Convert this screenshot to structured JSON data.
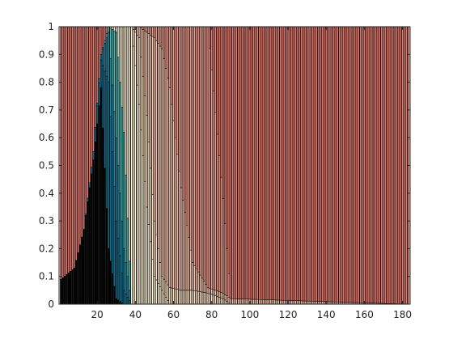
{
  "chart_data": {
    "type": "bar",
    "stacked": true,
    "normalized": true,
    "x_start": 1,
    "x_end": 183,
    "xlim": [
      0,
      184
    ],
    "ylim": [
      0,
      1
    ],
    "x_ticks": [
      20,
      40,
      60,
      80,
      100,
      120,
      140,
      160,
      180
    ],
    "y_ticks": [
      0,
      0.1,
      0.2,
      0.3,
      0.4,
      0.5,
      0.6,
      0.7,
      0.8,
      0.9,
      1
    ],
    "grid": false,
    "legend": "none",
    "colors": {
      "bar_edge": "#000000",
      "axes": "#262626",
      "segments": [
        "#000000",
        "#0b6d91",
        "#1887a8",
        "#47b8b0",
        "#fff4d6",
        "#fde3c0",
        "#fbc6ae",
        "#f59e8d",
        "#ef7b6f"
      ]
    },
    "description_of_series": [
      "Each bar is a share distribution over categories; bottom segment black, then teal shades, cream, peach, salmon, red."
    ],
    "breakpoints": [
      {
        "x": 1,
        "cum": [
          0.09,
          0.09,
          0.09,
          0.09,
          0.09,
          0.09,
          0.09,
          0.09,
          1.0
        ]
      },
      {
        "x": 8,
        "cum": [
          0.13,
          0.13,
          0.13,
          0.13,
          0.13,
          0.13,
          0.13,
          0.13,
          1.0
        ]
      },
      {
        "x": 13,
        "cum": [
          0.27,
          0.27,
          0.27,
          0.27,
          0.27,
          0.27,
          0.27,
          0.27,
          1.0
        ]
      },
      {
        "x": 18,
        "cum": [
          0.52,
          0.55,
          0.55,
          0.55,
          0.55,
          0.55,
          0.55,
          0.55,
          1.0
        ]
      },
      {
        "x": 22,
        "cum": [
          0.78,
          0.88,
          0.9,
          0.9,
          0.9,
          0.9,
          0.9,
          0.9,
          1.0
        ]
      },
      {
        "x": 26,
        "cum": [
          0.2,
          0.8,
          0.98,
          1.0,
          1.0,
          1.0,
          1.0,
          1.0,
          1.0
        ]
      },
      {
        "x": 30,
        "cum": [
          0.02,
          0.3,
          0.6,
          0.98,
          1.0,
          1.0,
          1.0,
          1.0,
          1.0
        ]
      },
      {
        "x": 34,
        "cum": [
          0.0,
          0.05,
          0.2,
          0.62,
          1.0,
          1.0,
          1.0,
          1.0,
          1.0
        ]
      },
      {
        "x": 38,
        "cum": [
          0.0,
          0.0,
          0.0,
          0.0,
          1.0,
          1.0,
          1.0,
          1.0,
          1.0
        ]
      },
      {
        "x": 42,
        "cum": [
          0.0,
          0.0,
          0.0,
          0.0,
          0.72,
          0.96,
          1.0,
          1.0,
          1.0
        ]
      },
      {
        "x": 46,
        "cum": [
          0.0,
          0.0,
          0.0,
          0.0,
          0.35,
          0.68,
          0.98,
          1.0,
          1.0
        ]
      },
      {
        "x": 50,
        "cum": [
          0.0,
          0.0,
          0.0,
          0.0,
          0.1,
          0.3,
          0.96,
          1.0,
          1.0
        ]
      },
      {
        "x": 54,
        "cum": [
          0.0,
          0.0,
          0.0,
          0.0,
          0.05,
          0.1,
          0.92,
          1.0,
          1.0
        ]
      },
      {
        "x": 58,
        "cum": [
          0.0,
          0.0,
          0.0,
          0.0,
          0.0,
          0.06,
          0.78,
          1.0,
          1.0
        ]
      },
      {
        "x": 64,
        "cum": [
          0.0,
          0.0,
          0.0,
          0.0,
          0.0,
          0.05,
          0.42,
          1.0,
          1.0
        ]
      },
      {
        "x": 70,
        "cum": [
          0.0,
          0.0,
          0.0,
          0.0,
          0.0,
          0.05,
          0.15,
          1.0,
          1.0
        ]
      },
      {
        "x": 78,
        "cum": [
          0.0,
          0.0,
          0.0,
          0.0,
          0.0,
          0.04,
          0.06,
          1.0,
          1.0
        ]
      },
      {
        "x": 86,
        "cum": [
          0.0,
          0.0,
          0.0,
          0.0,
          0.0,
          0.02,
          0.04,
          0.38,
          1.0
        ]
      },
      {
        "x": 90,
        "cum": [
          0.0,
          0.0,
          0.0,
          0.0,
          0.0,
          0.0,
          0.02,
          0.02,
          1.0
        ]
      },
      {
        "x": 183,
        "cum": [
          0.0,
          0.0,
          0.0,
          0.0,
          0.0,
          0.0,
          0.0,
          0.0,
          1.0
        ]
      }
    ]
  }
}
